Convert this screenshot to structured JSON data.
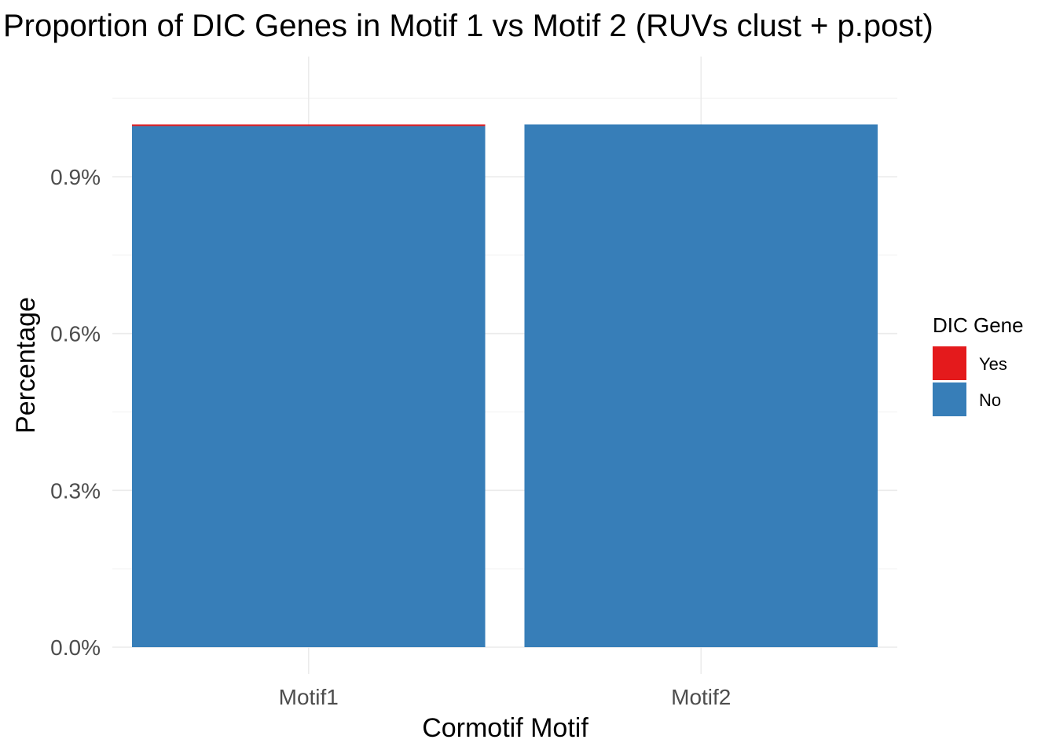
{
  "chart_data": {
    "type": "bar",
    "stacked": true,
    "title": "Proportion of DIC Genes in Motif 1 vs Motif 2 (RUVs clust + p.post)",
    "xlabel": "Cormotif Motif",
    "ylabel": "Percentage",
    "categories": [
      "Motif1",
      "Motif2"
    ],
    "series": [
      {
        "name": "Yes",
        "color": "#e41a1c",
        "values": [
          3e-05,
          0.0
        ]
      },
      {
        "name": "No",
        "color": "#377eb8",
        "values": [
          0.00997,
          0.01
        ]
      }
    ],
    "ylim": [
      0,
      0.0105
    ],
    "yticks": [
      0,
      0.003,
      0.006,
      0.009
    ],
    "ytick_labels": [
      "0.0%",
      "0.3%",
      "0.6%",
      "0.9%"
    ],
    "legend": {
      "title": "DIC Gene",
      "position": "right",
      "entries": [
        "Yes",
        "No"
      ]
    },
    "grid": true
  }
}
